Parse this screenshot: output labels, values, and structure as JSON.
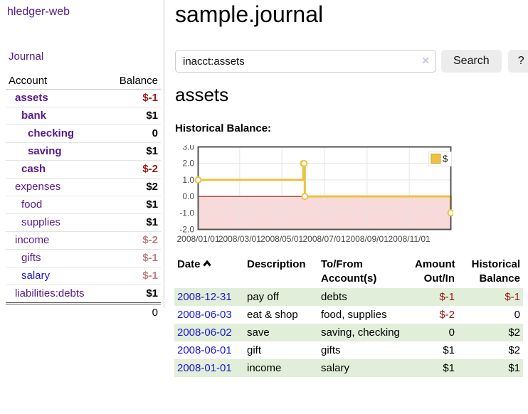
{
  "app": {
    "brand": "hledger-web",
    "nav_journal": "Journal"
  },
  "sidebar": {
    "table_headers": {
      "account": "Account",
      "balance": "Balance"
    },
    "accounts": [
      {
        "name": "assets",
        "balance": "$-1",
        "indent": 1,
        "bold": true,
        "amount_style": "neg",
        "link_style": "visited"
      },
      {
        "name": "bank",
        "balance": "$1",
        "indent": 2,
        "bold": true,
        "amount_style": "pos",
        "link_style": "visited"
      },
      {
        "name": "checking",
        "balance": "0",
        "indent": 3,
        "bold": true,
        "amount_style": "pos",
        "link_style": "visited"
      },
      {
        "name": "saving",
        "balance": "$1",
        "indent": 3,
        "bold": true,
        "amount_style": "pos",
        "link_style": "visited"
      },
      {
        "name": "cash",
        "balance": "$-2",
        "indent": 2,
        "bold": true,
        "amount_style": "neg",
        "link_style": "visited"
      },
      {
        "name": "expenses",
        "balance": "$2",
        "indent": 1,
        "bold": false,
        "amount_style": "pos",
        "link_style": "visited"
      },
      {
        "name": "food",
        "balance": "$1",
        "indent": 2,
        "bold": false,
        "amount_style": "pos",
        "link_style": "visited"
      },
      {
        "name": "supplies",
        "balance": "$1",
        "indent": 2,
        "bold": false,
        "amount_style": "pos",
        "link_style": "visited"
      },
      {
        "name": "income",
        "balance": "$-2",
        "indent": 1,
        "bold": false,
        "amount_style": "rose",
        "link_style": "visited"
      },
      {
        "name": "gifts",
        "balance": "$-1",
        "indent": 2,
        "bold": false,
        "amount_style": "rose",
        "link_style": "visited"
      },
      {
        "name": "salary",
        "balance": "$-1",
        "indent": 2,
        "bold": false,
        "amount_style": "rose",
        "link_style": "link"
      },
      {
        "name": "liabilities:debts",
        "balance": "$1",
        "indent": 1,
        "bold": false,
        "amount_style": "pos",
        "link_style": "visited"
      }
    ],
    "total": "0"
  },
  "header": {
    "title": "sample.journal"
  },
  "search": {
    "value": "inacct:assets",
    "clear_icon": "✕",
    "button": "Search",
    "help_button": "?"
  },
  "account_page": {
    "title": "assets",
    "chart_label": "Historical Balance:"
  },
  "chart_data": {
    "type": "line",
    "style": "steps",
    "title": "Historical Balance:",
    "series": [
      {
        "name": "$",
        "color": "#edc240",
        "points": [
          [
            "2008-01-01",
            1
          ],
          [
            "2008-06-01",
            2
          ],
          [
            "2008-06-02",
            2
          ],
          [
            "2008-06-03",
            0
          ],
          [
            "2008-12-31",
            -1
          ]
        ]
      }
    ],
    "xlim": [
      "2008-01-01",
      "2008-12-31"
    ],
    "ylim": [
      -2,
      3
    ],
    "yticks": [
      3,
      2,
      1,
      0,
      -1,
      -2
    ],
    "ytick_labels": [
      "3.0",
      "2.0",
      "1.0",
      "0.0",
      "-1.0",
      "-2.0"
    ],
    "xticks": [
      "2008-01-01",
      "2008-03-01",
      "2008-05-01",
      "2008-07-01",
      "2008-09-01",
      "2008-11-01"
    ],
    "xtick_labels": [
      "2008/01/01",
      "2008/03/01",
      "2008/05/01",
      "2008/07/01",
      "2008/09/01",
      "2008/11/01"
    ],
    "legend": {
      "label": "$",
      "position": "top-right"
    },
    "grid": true,
    "negative_region_color": "#f9dada",
    "zero_line_color": "#8b0000",
    "border_color": "#545454",
    "grid_color": "#e4e4e4",
    "tick_color": "#4a4a4a"
  },
  "register": {
    "headers": {
      "date": "Date",
      "description": "Description",
      "accounts": "To/From Account(s)",
      "amount": "Amount Out/In",
      "balance": "Historical Balance"
    },
    "rows": [
      {
        "date": "2008-12-31",
        "description": "pay off",
        "accounts": "debts",
        "amount": "$-1",
        "amount_neg": true,
        "balance": "$-1",
        "balance_neg": true
      },
      {
        "date": "2008-06-03",
        "description": "eat & shop",
        "accounts": "food, supplies",
        "amount": "$-2",
        "amount_neg": true,
        "balance": "0",
        "balance_neg": false
      },
      {
        "date": "2008-06-02",
        "description": "save",
        "accounts": "saving, checking",
        "amount": "0",
        "amount_neg": false,
        "balance": "$2",
        "balance_neg": false
      },
      {
        "date": "2008-06-01",
        "description": "gift",
        "accounts": "gifts",
        "amount": "$1",
        "amount_neg": false,
        "balance": "$2",
        "balance_neg": false
      },
      {
        "date": "2008-01-01",
        "description": "income",
        "accounts": "salary",
        "amount": "$1",
        "amount_neg": false,
        "balance": "$1",
        "balance_neg": false
      }
    ]
  },
  "colors": {
    "link": "#1a16d8",
    "visited_link": "#551a8b",
    "negative": "#a01515",
    "negative_muted": "#bd7e7e",
    "stripe_green": "#e1eed9",
    "chart_line": "#edc240"
  }
}
